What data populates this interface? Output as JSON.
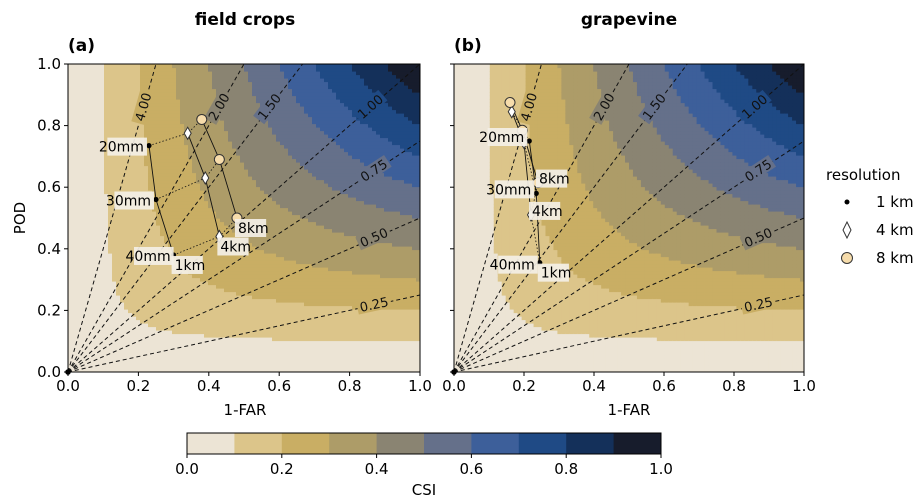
{
  "chart_data": [
    {
      "type": "performance_diagram",
      "title": "field crops",
      "panel_label": "(a)",
      "xlabel": "1-FAR",
      "ylabel": "POD",
      "xlim": [
        0,
        1
      ],
      "ylim": [
        0,
        1
      ],
      "x_ticks": [
        "0.0",
        "0.2",
        "0.4",
        "0.6",
        "0.8",
        "1.0"
      ],
      "y_ticks": [
        "0.0",
        "0.2",
        "0.4",
        "0.6",
        "0.8",
        "1.0"
      ],
      "csi_levels": [
        0,
        0.1,
        0.2,
        0.3,
        0.4,
        0.5,
        0.6,
        0.7,
        0.8,
        0.9,
        1.0
      ],
      "bias_lines": [
        "0.25",
        "0.50",
        "0.75",
        "1.00",
        "1.50",
        "2.00",
        "4.00"
      ],
      "series": [
        {
          "name": "1 km",
          "points": [
            {
              "x": 0.23,
              "y": 0.735
            },
            {
              "x": 0.25,
              "y": 0.56
            },
            {
              "x": 0.3,
              "y": 0.38
            }
          ]
        },
        {
          "name": "4 km",
          "points": [
            {
              "x": 0.34,
              "y": 0.775
            },
            {
              "x": 0.39,
              "y": 0.63
            },
            {
              "x": 0.43,
              "y": 0.44
            }
          ]
        },
        {
          "name": "8 km",
          "points": [
            {
              "x": 0.38,
              "y": 0.82
            },
            {
              "x": 0.43,
              "y": 0.69
            },
            {
              "x": 0.48,
              "y": 0.5
            }
          ]
        }
      ],
      "threshold_labels": [
        "20mm",
        "30mm",
        "40mm"
      ],
      "resolution_labels": [
        "1km",
        "4km",
        "8km"
      ]
    },
    {
      "type": "performance_diagram",
      "title": "grapevine",
      "panel_label": "(b)",
      "xlabel": "1-FAR",
      "ylabel": "",
      "xlim": [
        0,
        1
      ],
      "ylim": [
        0,
        1
      ],
      "x_ticks": [
        "0.0",
        "0.2",
        "0.4",
        "0.6",
        "0.8",
        "1.0"
      ],
      "y_ticks": [
        "0.0",
        "0.2",
        "0.4",
        "0.6",
        "0.8",
        "1.0"
      ],
      "csi_levels": [
        0,
        0.1,
        0.2,
        0.3,
        0.4,
        0.5,
        0.6,
        0.7,
        0.8,
        0.9,
        1.0
      ],
      "bias_lines": [
        "0.25",
        "0.50",
        "0.75",
        "1.00",
        "1.50",
        "2.00",
        "4.00"
      ],
      "series": [
        {
          "name": "1 km",
          "points": [
            {
              "x": 0.215,
              "y": 0.75
            },
            {
              "x": 0.235,
              "y": 0.58
            },
            {
              "x": 0.245,
              "y": 0.355
            }
          ]
        },
        {
          "name": "4 km",
          "points": [
            {
              "x": 0.165,
              "y": 0.845
            },
            {
              "x": 0.2,
              "y": 0.745
            },
            {
              "x": 0.22,
              "y": 0.51
            }
          ]
        },
        {
          "name": "8 km",
          "points": [
            {
              "x": 0.16,
              "y": 0.875
            },
            {
              "x": 0.195,
              "y": 0.785
            },
            {
              "x": 0.24,
              "y": 0.615
            }
          ]
        }
      ],
      "threshold_labels": [
        "20mm",
        "30mm",
        "40mm"
      ],
      "resolution_labels": [
        "1km",
        "4km",
        "8km"
      ]
    }
  ],
  "legend": {
    "title": "resolution",
    "placement": "right",
    "items": [
      {
        "label": "1 km",
        "marker": "dot"
      },
      {
        "label": "4 km",
        "marker": "diamond"
      },
      {
        "label": "8 km",
        "marker": "circle"
      }
    ]
  },
  "colorbar": {
    "label": "CSI",
    "ticks": [
      "0.0",
      "0.2",
      "0.4",
      "0.6",
      "0.8",
      "1.0"
    ],
    "colors": [
      "#ece4d5",
      "#dcc58a",
      "#c9ae64",
      "#ad9c68",
      "#8a8472",
      "#65708a",
      "#3d5f9a",
      "#1f4a85",
      "#14305a",
      "#171c2c"
    ]
  }
}
